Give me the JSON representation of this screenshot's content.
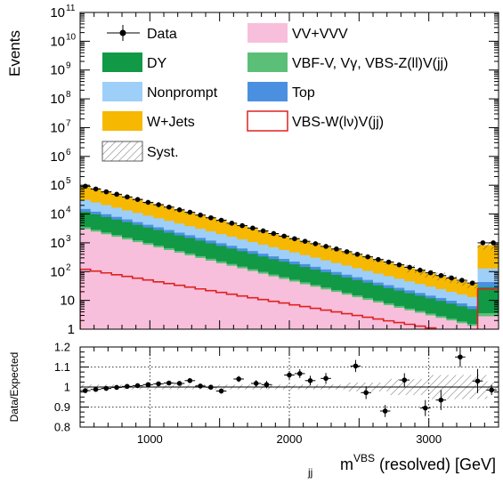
{
  "chart_data": [
    {
      "type": "area",
      "scale": "log",
      "stacked": true,
      "ylabel": "Events",
      "ylim": [
        1,
        100000000000
      ],
      "xlim": [
        500,
        3500
      ],
      "yticks": [
        {
          "value": 100000000000,
          "mant": "10",
          "exp": "11"
        },
        {
          "value": 10000000000,
          "mant": "10",
          "exp": "10"
        },
        {
          "value": 1000000000,
          "mant": "10",
          "exp": "9"
        },
        {
          "value": 100000000,
          "mant": "10",
          "exp": "8"
        },
        {
          "value": 10000000,
          "mant": "10",
          "exp": "7"
        },
        {
          "value": 1000000,
          "mant": "10",
          "exp": "6"
        },
        {
          "value": 100000,
          "mant": "10",
          "exp": "5"
        },
        {
          "value": 10000,
          "mant": "10",
          "exp": "4"
        },
        {
          "value": 1000,
          "mant": "10",
          "exp": "3"
        },
        {
          "value": 100,
          "mant": "10",
          "exp": "2"
        },
        {
          "value": 10,
          "mant": "10",
          "exp": ""
        },
        {
          "value": 1,
          "mant": "1",
          "exp": ""
        }
      ],
      "bin_edges": [
        500,
        575,
        650,
        725,
        800,
        875,
        950,
        1025,
        1100,
        1175,
        1250,
        1325,
        1400,
        1475,
        1550,
        1625,
        1700,
        1775,
        1850,
        1925,
        2000,
        2075,
        2150,
        2225,
        2300,
        2375,
        2450,
        2525,
        2600,
        2675,
        2750,
        2825,
        2900,
        2975,
        3050,
        3125,
        3200,
        3275,
        3350,
        3425,
        3500
      ],
      "stack": [
        {
          "name": "VV+VVV",
          "color": "#f7bfdc",
          "values": [
            3000,
            2430,
            1970,
            1600,
            1300,
            1050,
            850,
            690,
            560,
            450,
            365,
            296,
            240,
            194,
            158,
            128,
            104,
            84,
            68,
            55,
            45,
            36.5,
            29.6,
            24,
            19.5,
            15.8,
            12.8,
            10.4,
            8.4,
            6.8,
            5.5,
            4.5,
            3.7,
            3,
            2.45,
            2,
            1.6,
            1.3,
            2.8,
            2.8
          ]
        },
        {
          "name": "VBS-W(lν)V(jj)",
          "color": "#f7bfdc",
          "values": [
            0,
            0,
            0,
            0,
            0,
            0,
            0,
            0,
            0,
            0,
            0,
            0,
            0,
            0,
            0,
            0,
            0,
            0,
            0,
            0,
            0,
            0,
            0,
            0,
            0,
            0,
            0,
            0,
            0,
            0,
            0,
            0,
            0,
            0,
            0,
            0,
            0,
            0,
            0,
            0
          ]
        },
        {
          "name": "VBF-V, Vγ, VBS-Z(ll)V(jj)",
          "color": "#5cbf78",
          "values": [
            500,
            405,
            328,
            266,
            216,
            175,
            142,
            115,
            93,
            75.5,
            61,
            49.5,
            40,
            32.5,
            26.3,
            21.3,
            17.3,
            14,
            11.4,
            9.2,
            7.5,
            6.1,
            4.9,
            4,
            3.25,
            2.6,
            2.1,
            1.75,
            1.4,
            1.15,
            0.92,
            0.75,
            0.61,
            0.5,
            0.41,
            0.33,
            0.27,
            0.22,
            0.8,
            0.8
          ]
        },
        {
          "name": "DY",
          "color": "#119945",
          "values": [
            8500,
            6880,
            5580,
            4520,
            3660,
            2970,
            2400,
            1950,
            1580,
            1280,
            1037,
            840,
            680,
            551,
            446,
            362,
            293,
            237,
            192,
            156,
            126,
            102,
            83,
            67,
            54,
            44,
            36,
            29,
            23.5,
            19,
            15.5,
            12.5,
            10.2,
            8.2,
            6.7,
            5.4,
            4.4,
            3.5,
            25,
            25
          ]
        },
        {
          "name": "Top",
          "color": "#4b90e0",
          "values": [
            3000,
            2430,
            1970,
            1600,
            1300,
            1050,
            850,
            690,
            560,
            450,
            365,
            296,
            240,
            194,
            158,
            128,
            104,
            84,
            68,
            55,
            45,
            36.5,
            29.6,
            24,
            19.5,
            15.8,
            12.8,
            10.4,
            8.4,
            6.8,
            5.5,
            4.5,
            3.7,
            3,
            2.45,
            2,
            1.6,
            1.3,
            15,
            15
          ]
        },
        {
          "name": "Nonprompt",
          "color": "#9ecff8",
          "values": [
            16000,
            12960,
            10500,
            8500,
            6900,
            5580,
            4520,
            3660,
            2970,
            2400,
            1950,
            1580,
            1280,
            1037,
            840,
            680,
            551,
            446,
            362,
            293,
            237,
            192,
            156,
            126,
            102,
            83,
            67,
            54,
            44,
            36,
            29,
            23.5,
            19,
            15.5,
            12.5,
            10.2,
            8.2,
            6.7,
            85,
            85
          ]
        },
        {
          "name": "W+Jets",
          "color": "#f6b800",
          "values": [
            60000,
            48600,
            39300,
            31900,
            25800,
            20900,
            16900,
            13700,
            11100,
            9000,
            7300,
            5900,
            4780,
            3870,
            3140,
            2540,
            2060,
            1670,
            1350,
            1090,
            886,
            718,
            581,
            471,
            381,
            309,
            250,
            203,
            164,
            133,
            108,
            87,
            71,
            57,
            46,
            37.5,
            30.4,
            24.6,
            700,
            700
          ]
        }
      ],
      "signal": {
        "name": "VBS-W(lν)V(jj)",
        "color": "#e02020",
        "values": [
          120,
          104,
          90,
          78,
          68,
          59,
          51,
          44,
          38.5,
          33.5,
          29,
          25,
          21.8,
          18.9,
          16.4,
          14.2,
          12.3,
          10.7,
          9.3,
          8.1,
          7,
          6.1,
          5.3,
          4.6,
          4,
          3.45,
          3,
          2.6,
          2.25,
          1.95,
          1.7,
          1.48,
          1.28,
          1.11,
          0.96,
          0.84,
          0.73,
          0.63,
          25,
          25
        ]
      },
      "data": {
        "name": "Data",
        "values": [
          92000,
          74000,
          59000,
          48500,
          39200,
          32000,
          25400,
          21100,
          17400,
          14000,
          11500,
          9200,
          7400,
          6100,
          4800,
          3950,
          3250,
          2600,
          2100,
          1710,
          1390,
          1130,
          930,
          750,
          610,
          492,
          400,
          325,
          263,
          215,
          172,
          141,
          112,
          91,
          73,
          60,
          50,
          40,
          1000,
          1000
        ]
      },
      "legend": [
        {
          "label": "Data",
          "kind": "marker"
        },
        {
          "label": "VV+VVV",
          "kind": "fill",
          "color": "#f7bfdc"
        },
        {
          "label": "DY",
          "kind": "fill",
          "color": "#119945"
        },
        {
          "label": "VBF-V, Vγ, VBS-Z(ll)V(jj)",
          "kind": "fill",
          "color": "#5cbf78"
        },
        {
          "label": "Nonprompt",
          "kind": "fill",
          "color": "#9ecff8"
        },
        {
          "label": "Top",
          "kind": "fill",
          "color": "#4b90e0"
        },
        {
          "label": "W+Jets",
          "kind": "fill",
          "color": "#f6b800"
        },
        {
          "label": "VBS-W(lν)V(jj)",
          "kind": "line",
          "color": "#e02020"
        },
        {
          "label": "Syst.",
          "kind": "hatch"
        }
      ]
    },
    {
      "type": "scatter",
      "ylabel": "Data/Expected",
      "ylim": [
        0.8,
        1.2
      ],
      "xlim": [
        500,
        3500
      ],
      "yticks": [
        0.8,
        0.9,
        1,
        1.1,
        1.2
      ],
      "ytick_labels": [
        "0.8",
        "0.9",
        "1",
        "1.1",
        "1.2"
      ],
      "xticks": [
        1000,
        2000,
        3000
      ],
      "xtick_labels": [
        "1000",
        "2000",
        "3000"
      ],
      "gridlines_y": [
        0.9,
        1.1
      ],
      "gridlines_x": [
        1000,
        2000,
        3000
      ],
      "xlabel_main": "m",
      "xlabel_sub": "jj",
      "xlabel_sup": "VBS",
      "xlabel_rest": " (resolved) [GeV]",
      "points": [
        {
          "x": 537,
          "y": 0.982,
          "xerr": 37,
          "yerr": 0.006
        },
        {
          "x": 612,
          "y": 0.988,
          "xerr": 37,
          "yerr": 0.006
        },
        {
          "x": 687,
          "y": 0.993,
          "xerr": 37,
          "yerr": 0.006
        },
        {
          "x": 762,
          "y": 0.998,
          "xerr": 37,
          "yerr": 0.007
        },
        {
          "x": 837,
          "y": 1.003,
          "xerr": 37,
          "yerr": 0.007
        },
        {
          "x": 912,
          "y": 1.007,
          "xerr": 37,
          "yerr": 0.007
        },
        {
          "x": 987,
          "y": 1.012,
          "xerr": 37,
          "yerr": 0.008
        },
        {
          "x": 1062,
          "y": 1.016,
          "xerr": 37,
          "yerr": 0.008
        },
        {
          "x": 1137,
          "y": 1.02,
          "xerr": 37,
          "yerr": 0.009
        },
        {
          "x": 1212,
          "y": 1.018,
          "xerr": 37,
          "yerr": 0.009
        },
        {
          "x": 1287,
          "y": 1.032,
          "xerr": 37,
          "yerr": 0.01
        },
        {
          "x": 1362,
          "y": 1.005,
          "xerr": 37,
          "yerr": 0.011
        },
        {
          "x": 1437,
          "y": 0.999,
          "xerr": 37,
          "yerr": 0.012
        },
        {
          "x": 1512,
          "y": 0.98,
          "xerr": 37,
          "yerr": 0.013
        },
        {
          "x": 1637,
          "y": 1.04,
          "xerr": 37,
          "yerr": 0.015
        },
        {
          "x": 1762,
          "y": 1.018,
          "xerr": 37,
          "yerr": 0.016
        },
        {
          "x": 1837,
          "y": 1.012,
          "xerr": 37,
          "yerr": 0.018
        },
        {
          "x": 2000,
          "y": 1.06,
          "xerr": 37,
          "yerr": 0.02
        },
        {
          "x": 2075,
          "y": 1.067,
          "xerr": 37,
          "yerr": 0.022
        },
        {
          "x": 2150,
          "y": 1.032,
          "xerr": 37,
          "yerr": 0.024
        },
        {
          "x": 2262,
          "y": 1.043,
          "xerr": 37,
          "yerr": 0.027
        },
        {
          "x": 2475,
          "y": 1.105,
          "xerr": 37,
          "yerr": 0.03
        },
        {
          "x": 2550,
          "y": 0.972,
          "xerr": 37,
          "yerr": 0.032
        },
        {
          "x": 2687,
          "y": 0.88,
          "xerr": 37,
          "yerr": 0.03
        },
        {
          "x": 2825,
          "y": 1.035,
          "xerr": 37,
          "yerr": 0.034
        },
        {
          "x": 2975,
          "y": 0.895,
          "xerr": 37,
          "yerr": 0.04
        },
        {
          "x": 3087,
          "y": 0.935,
          "xerr": 37,
          "yerr": 0.05
        },
        {
          "x": 3225,
          "y": 1.15,
          "xerr": 37,
          "yerr": 0.05
        },
        {
          "x": 3350,
          "y": 1.03,
          "xerr": 37,
          "yerr": 0.06
        },
        {
          "x": 3450,
          "y": 0.985,
          "xerr": 37,
          "yerr": 0.025
        }
      ],
      "syst_band": [
        {
          "x0": 500,
          "x1": 2400,
          "half": 0.012
        },
        {
          "x0": 2400,
          "x1": 2700,
          "half": 0.022
        },
        {
          "x0": 2700,
          "x1": 3000,
          "half": 0.04
        },
        {
          "x0": 3000,
          "x1": 3420,
          "half": 0.06
        },
        {
          "x0": 3420,
          "x1": 3500,
          "half": 0.022
        }
      ]
    }
  ]
}
